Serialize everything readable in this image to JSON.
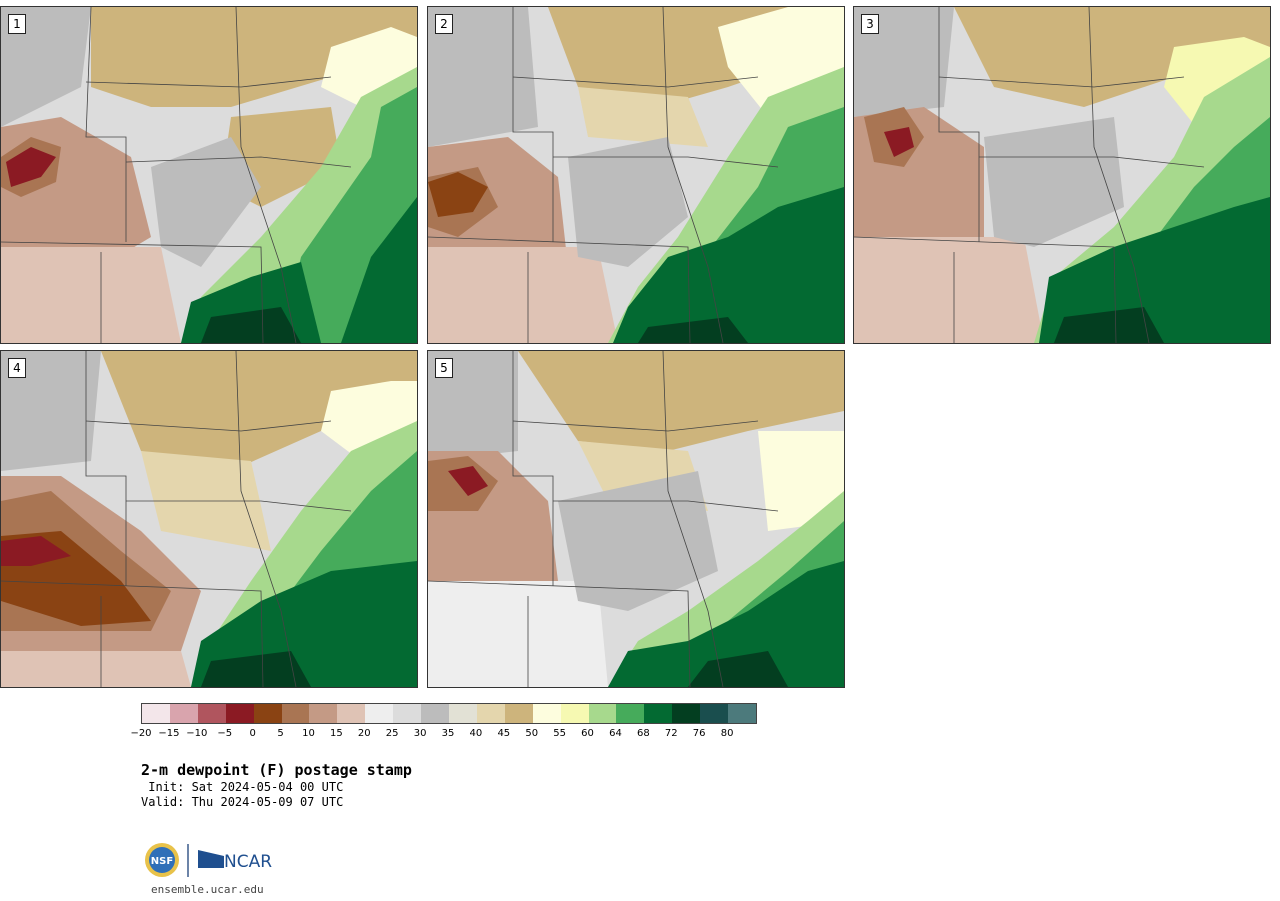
{
  "panels": [
    {
      "label": "1"
    },
    {
      "label": "2"
    },
    {
      "label": "3"
    },
    {
      "label": "4"
    },
    {
      "label": "5"
    }
  ],
  "colorbar": {
    "colors": [
      "#f3e6ea",
      "#d9a4ad",
      "#b0555e",
      "#8b1a23",
      "#8a4313",
      "#a97553",
      "#c49a85",
      "#dfc3b5",
      "#eeeeee",
      "#dcdcdc",
      "#bcbcbc",
      "#e2e1d5",
      "#e4d6ad",
      "#cdb47c",
      "#fdfdde",
      "#f6f9b2",
      "#a7d98d",
      "#46ab5b",
      "#036a32",
      "#033e20",
      "#1a4e4e",
      "#4c7a7c"
    ],
    "tick_labels": [
      "−20",
      "−15",
      "−10",
      "−5",
      "0",
      "5",
      "10",
      "15",
      "20",
      "25",
      "30",
      "35",
      "40",
      "45",
      "50",
      "55",
      "60",
      "64",
      "68",
      "72",
      "76",
      "80"
    ]
  },
  "title": "2-m dewpoint (F) postage stamp",
  "init": " Init: Sat 2024-05-04 00 UTC",
  "valid": "Valid: Thu 2024-05-09 07 UTC",
  "logos": {
    "nsf": "NSF",
    "ncar": "NCAR"
  },
  "site": "ensemble.ucar.edu"
}
